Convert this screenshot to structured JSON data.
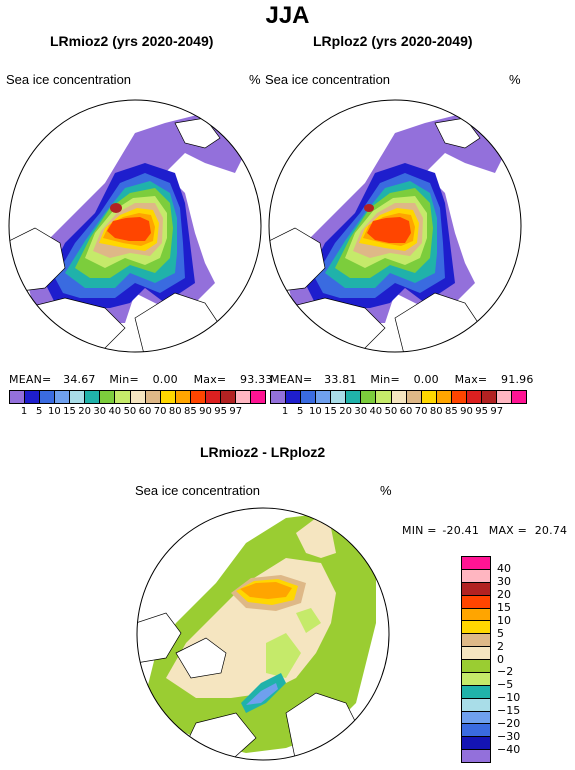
{
  "title": "JJA",
  "panels": [
    {
      "title": "LRmioz2 (yrs 2020-2049)",
      "variable": "Sea ice concentration",
      "unit": "%",
      "mean_label": "MEAN=",
      "mean": "34.67",
      "min_label": "Min=",
      "min": "0.00",
      "max_label": "Max=",
      "max": "93.33"
    },
    {
      "title": "LRploz2 (yrs 2020-2049)",
      "variable": "Sea ice concentration",
      "unit": "%",
      "mean_label": "MEAN=",
      "mean": "33.81",
      "min_label": "Min=",
      "min": "0.00",
      "max_label": "Max=",
      "max": "91.96"
    }
  ],
  "diff_panel": {
    "title": "LRmioz2 - LRploz2",
    "variable": "Sea ice concentration",
    "unit": "%",
    "min_label": "MIN =",
    "min": "-20.41",
    "max_label": "MAX =",
    "max": "20.74"
  },
  "colorbar_concentration": {
    "ticks": [
      "1",
      "5",
      "10",
      "15",
      "20",
      "30",
      "40",
      "50",
      "60",
      "70",
      "80",
      "85",
      "90",
      "95",
      "97"
    ],
    "colors": [
      "#9370db",
      "#1e1ecd",
      "#3a6be0",
      "#6fa0ee",
      "#a9dde8",
      "#20b2aa",
      "#7ccd3c",
      "#c5ea6a",
      "#f5e5c0",
      "#deb887",
      "#ffd700",
      "#ffa500",
      "#ff4500",
      "#dc2020",
      "#b22222",
      "#ffb6c1",
      "#ff1493"
    ]
  },
  "colorbar_difference": {
    "ticks": [
      "40",
      "30",
      "20",
      "15",
      "10",
      "5",
      "2",
      "0",
      "−2",
      "−5",
      "−10",
      "−15",
      "−20",
      "−30",
      "−40"
    ],
    "colors": [
      "#ff1493",
      "#ffb6c1",
      "#b22222",
      "#ff4500",
      "#ffa500",
      "#ffd700",
      "#deb887",
      "#f5e5c0",
      "#9acd32",
      "#c5ea6a",
      "#20b2aa",
      "#a9dde8",
      "#6fa0ee",
      "#3a6be0",
      "#1414b4",
      "#9370db"
    ]
  },
  "chart_data": [
    {
      "type": "heatmap",
      "title": "LRmioz2 (yrs 2020-2049)",
      "variable": "Sea ice concentration",
      "unit": "%",
      "mean": 34.67,
      "min": 0.0,
      "max": 93.33,
      "levels": [
        1,
        5,
        10,
        15,
        20,
        30,
        40,
        50,
        60,
        70,
        80,
        85,
        90,
        95,
        97
      ]
    },
    {
      "type": "heatmap",
      "title": "LRploz2 (yrs 2020-2049)",
      "variable": "Sea ice concentration",
      "unit": "%",
      "mean": 33.81,
      "min": 0.0,
      "max": 91.96,
      "levels": [
        1,
        5,
        10,
        15,
        20,
        30,
        40,
        50,
        60,
        70,
        80,
        85,
        90,
        95,
        97
      ]
    },
    {
      "type": "heatmap",
      "title": "LRmioz2 - LRploz2",
      "variable": "Sea ice concentration",
      "unit": "%",
      "min": -20.41,
      "max": 20.74,
      "levels": [
        -40,
        -30,
        -20,
        -15,
        -10,
        -5,
        -2,
        0,
        2,
        5,
        10,
        15,
        20,
        30,
        40
      ]
    }
  ]
}
